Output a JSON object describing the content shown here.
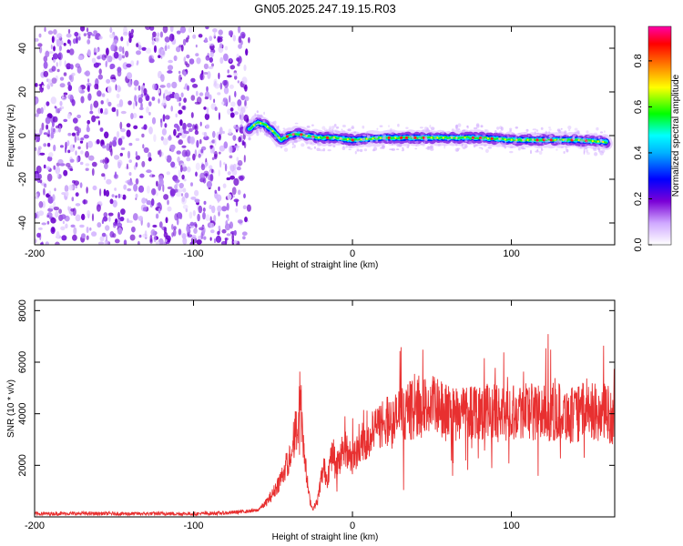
{
  "title": "GN05.2025.247.19.15.R03",
  "colors": {
    "spectrogram_scale": [
      "#ffffff",
      "#7a00d6",
      "#0000ff",
      "#00ffff",
      "#00ff00",
      "#ffff00",
      "#ff7f00",
      "#ff0000",
      "#ff00aa"
    ],
    "snr_line": "#e83030"
  },
  "chart_data": [
    {
      "type": "heatmap",
      "title": "",
      "xlabel": "Height of straight line (km)",
      "ylabel": "Frequency (Hz)",
      "xlim": [
        -200,
        165
      ],
      "ylim": [
        -50,
        50
      ],
      "xticks": [
        "-200",
        "-100",
        "0",
        "100"
      ],
      "xtick_values": [
        -200,
        -100,
        0,
        100
      ],
      "yticks": [
        "-40",
        "-20",
        "0",
        "20",
        "40"
      ],
      "ytick_values": [
        -40,
        -20,
        0,
        20,
        40
      ],
      "grid": false,
      "noise_region": {
        "x_from": -200,
        "x_to": -65
      },
      "signal_track": {
        "x": [
          -65,
          -60,
          -55,
          -50,
          -45,
          -40,
          -35,
          -30,
          -20,
          -10,
          0,
          20,
          40,
          60,
          80,
          100,
          120,
          140,
          160
        ],
        "y": [
          3,
          6,
          5,
          2,
          -2,
          0,
          1,
          0,
          -1,
          -1,
          -2,
          -1,
          -1,
          -1,
          -1,
          -2,
          -2,
          -2,
          -3
        ]
      },
      "colorbar": {
        "label": "Normalized spectral amplitude",
        "ticks": [
          "0.0",
          "0.2",
          "0.4",
          "0.6",
          "0.8"
        ],
        "tick_values": [
          0.0,
          0.2,
          0.4,
          0.6,
          0.8
        ],
        "range": [
          0,
          0.95
        ]
      }
    },
    {
      "type": "line",
      "title": "",
      "xlabel": "Height of straight line (km)",
      "ylabel": "SNR (10 * v/v)",
      "xlim": [
        -200,
        165
      ],
      "ylim": [
        0,
        8400
      ],
      "xticks": [
        "-200",
        "-100",
        "0",
        "100"
      ],
      "xtick_values": [
        -200,
        -100,
        0,
        100
      ],
      "yticks": [
        "2000",
        "4000",
        "6000",
        "8000"
      ],
      "ytick_values": [
        2000,
        4000,
        6000,
        8000
      ],
      "grid": false,
      "series": [
        {
          "x": [
            -200,
            -180,
            -160,
            -140,
            -120,
            -100,
            -80,
            -60,
            -55,
            -50,
            -45,
            -40,
            -35,
            -33,
            -31,
            -29,
            -27,
            -25,
            -22,
            -20,
            -18,
            -16,
            -14,
            -12,
            -10,
            -5,
            0,
            5,
            10,
            15,
            20,
            25,
            30,
            40,
            50,
            60,
            70,
            80,
            90,
            100,
            110,
            120,
            130,
            140,
            150,
            155,
            160,
            165
          ],
          "y": [
            120,
            130,
            130,
            120,
            130,
            120,
            150,
            250,
            500,
            900,
            1500,
            2200,
            3500,
            4800,
            3000,
            1600,
            700,
            300,
            600,
            1400,
            1900,
            1500,
            2100,
            2400,
            2000,
            2600,
            2300,
            2800,
            3100,
            3300,
            3800,
            3600,
            4000,
            4200,
            4300,
            4000,
            4100,
            4200,
            4000,
            4100,
            4200,
            4000,
            4100,
            3900,
            4300,
            3800,
            4100,
            3700
          ]
        }
      ]
    }
  ]
}
